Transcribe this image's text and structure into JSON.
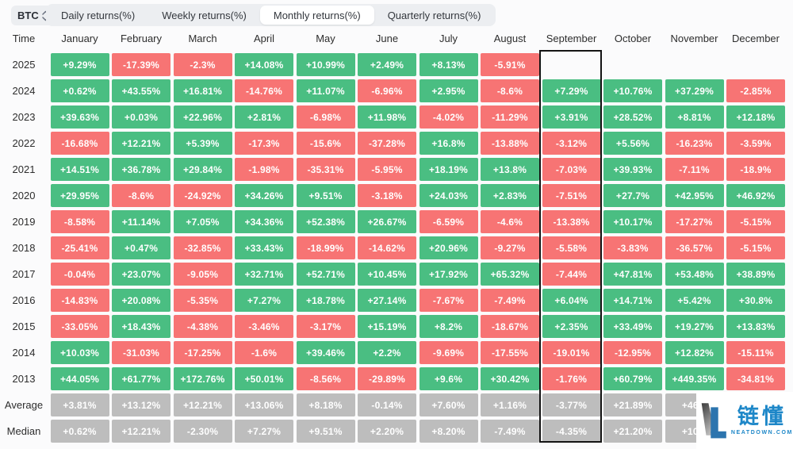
{
  "toolbar": {
    "asset": "BTC",
    "tabs": [
      {
        "label": "Daily returns(%)",
        "active": false
      },
      {
        "label": "Weekly returns(%)",
        "active": false
      },
      {
        "label": "Monthly returns(%)",
        "active": true
      },
      {
        "label": "Quarterly returns(%)",
        "active": false
      }
    ]
  },
  "colors": {
    "positive": "#4abe82",
    "negative": "#f77474",
    "neutral": "#bdbdbd",
    "highlight_border": "#141414",
    "watermark_blue": "#1d87c8"
  },
  "highlight": {
    "month": "September"
  },
  "watermark": {
    "cn": "链懂",
    "site": "NEATDOWN.COM"
  },
  "table": {
    "time_header": "Time",
    "months": [
      "January",
      "February",
      "March",
      "April",
      "May",
      "June",
      "July",
      "August",
      "September",
      "October",
      "November",
      "December"
    ],
    "rows": [
      {
        "label": "2025",
        "cells": [
          "g:+9.29%",
          "r:-17.39%",
          "r:-2.3%",
          "g:+14.08%",
          "g:+10.99%",
          "g:+2.49%",
          "g:+8.13%",
          "r:-5.91%",
          "e:",
          "e:",
          "e:",
          "e:"
        ]
      },
      {
        "label": "2024",
        "cells": [
          "g:+0.62%",
          "g:+43.55%",
          "g:+16.81%",
          "r:-14.76%",
          "g:+11.07%",
          "r:-6.96%",
          "g:+2.95%",
          "r:-8.6%",
          "g:+7.29%",
          "g:+10.76%",
          "g:+37.29%",
          "r:-2.85%"
        ]
      },
      {
        "label": "2023",
        "cells": [
          "g:+39.63%",
          "g:+0.03%",
          "g:+22.96%",
          "g:+2.81%",
          "r:-6.98%",
          "g:+11.98%",
          "r:-4.02%",
          "r:-11.29%",
          "g:+3.91%",
          "g:+28.52%",
          "g:+8.81%",
          "g:+12.18%"
        ]
      },
      {
        "label": "2022",
        "cells": [
          "r:-16.68%",
          "g:+12.21%",
          "g:+5.39%",
          "r:-17.3%",
          "r:-15.6%",
          "r:-37.28%",
          "g:+16.8%",
          "r:-13.88%",
          "r:-3.12%",
          "g:+5.56%",
          "r:-16.23%",
          "r:-3.59%"
        ]
      },
      {
        "label": "2021",
        "cells": [
          "g:+14.51%",
          "g:+36.78%",
          "g:+29.84%",
          "r:-1.98%",
          "r:-35.31%",
          "r:-5.95%",
          "g:+18.19%",
          "g:+13.8%",
          "r:-7.03%",
          "g:+39.93%",
          "r:-7.11%",
          "r:-18.9%"
        ]
      },
      {
        "label": "2020",
        "cells": [
          "g:+29.95%",
          "r:-8.6%",
          "r:-24.92%",
          "g:+34.26%",
          "g:+9.51%",
          "r:-3.18%",
          "g:+24.03%",
          "g:+2.83%",
          "r:-7.51%",
          "g:+27.7%",
          "g:+42.95%",
          "g:+46.92%"
        ]
      },
      {
        "label": "2019",
        "cells": [
          "r:-8.58%",
          "g:+11.14%",
          "g:+7.05%",
          "g:+34.36%",
          "g:+52.38%",
          "g:+26.67%",
          "r:-6.59%",
          "r:-4.6%",
          "r:-13.38%",
          "g:+10.17%",
          "r:-17.27%",
          "r:-5.15%"
        ]
      },
      {
        "label": "2018",
        "cells": [
          "r:-25.41%",
          "g:+0.47%",
          "r:-32.85%",
          "g:+33.43%",
          "r:-18.99%",
          "r:-14.62%",
          "g:+20.96%",
          "r:-9.27%",
          "r:-5.58%",
          "r:-3.83%",
          "r:-36.57%",
          "r:-5.15%"
        ]
      },
      {
        "label": "2017",
        "cells": [
          "r:-0.04%",
          "g:+23.07%",
          "r:-9.05%",
          "g:+32.71%",
          "g:+52.71%",
          "g:+10.45%",
          "g:+17.92%",
          "g:+65.32%",
          "r:-7.44%",
          "g:+47.81%",
          "g:+53.48%",
          "g:+38.89%"
        ]
      },
      {
        "label": "2016",
        "cells": [
          "r:-14.83%",
          "g:+20.08%",
          "r:-5.35%",
          "g:+7.27%",
          "g:+18.78%",
          "g:+27.14%",
          "r:-7.67%",
          "r:-7.49%",
          "g:+6.04%",
          "g:+14.71%",
          "g:+5.42%",
          "g:+30.8%"
        ]
      },
      {
        "label": "2015",
        "cells": [
          "r:-33.05%",
          "g:+18.43%",
          "r:-4.38%",
          "r:-3.46%",
          "r:-3.17%",
          "g:+15.19%",
          "g:+8.2%",
          "r:-18.67%",
          "g:+2.35%",
          "g:+33.49%",
          "g:+19.27%",
          "g:+13.83%"
        ]
      },
      {
        "label": "2014",
        "cells": [
          "g:+10.03%",
          "r:-31.03%",
          "r:-17.25%",
          "r:-1.6%",
          "g:+39.46%",
          "g:+2.2%",
          "r:-9.69%",
          "r:-17.55%",
          "r:-19.01%",
          "r:-12.95%",
          "g:+12.82%",
          "r:-15.11%"
        ]
      },
      {
        "label": "2013",
        "cells": [
          "g:+44.05%",
          "g:+61.77%",
          "g:+172.76%",
          "g:+50.01%",
          "r:-8.56%",
          "r:-29.89%",
          "g:+9.6%",
          "g:+30.42%",
          "r:-1.76%",
          "g:+60.79%",
          "g:+449.35%",
          "r:-34.81%"
        ]
      },
      {
        "label": "Average",
        "cells": [
          "n:+3.81%",
          "n:+13.12%",
          "n:+12.21%",
          "n:+13.06%",
          "n:+8.18%",
          "n:-0.14%",
          "n:+7.60%",
          "n:+1.16%",
          "n:-3.77%",
          "n:+21.89%",
          "n:+46.0",
          "n:"
        ]
      },
      {
        "label": "Median",
        "cells": [
          "n:+0.62%",
          "n:+12.21%",
          "n:-2.30%",
          "n:+7.27%",
          "n:+9.51%",
          "n:+2.20%",
          "n:+8.20%",
          "n:-7.49%",
          "n:-4.35%",
          "n:+21.20%",
          "n:+10.8",
          "n:"
        ]
      }
    ]
  }
}
